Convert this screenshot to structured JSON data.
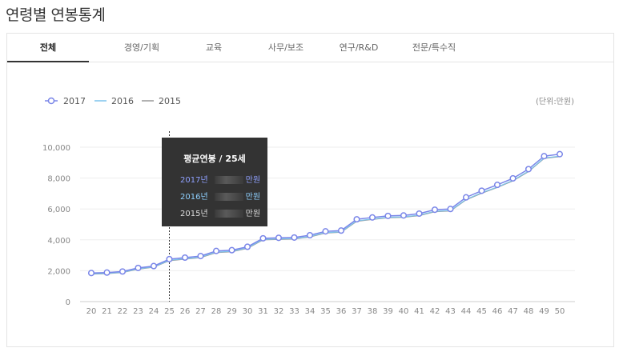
{
  "page": {
    "title": "연령별 연봉통계"
  },
  "tabs": [
    {
      "label": "전체",
      "active": true
    },
    {
      "label": "경영/기획",
      "active": false
    },
    {
      "label": "교육",
      "active": false
    },
    {
      "label": "사무/보조",
      "active": false
    },
    {
      "label": "연구/R&D",
      "active": false
    },
    {
      "label": "전문/특수직",
      "active": false
    }
  ],
  "legend": [
    {
      "name": "2017",
      "color": "#7a86e8"
    },
    {
      "name": "2016",
      "color": "#7cc3ec"
    },
    {
      "name": "2015",
      "color": "#999999"
    }
  ],
  "unit_label": "(단위:만원)",
  "tooltip": {
    "title": "평균연봉 / 25세",
    "rows": [
      {
        "year": "2017년",
        "unit": "만원",
        "color": "#8fa0ff"
      },
      {
        "year": "2016년",
        "unit": "만원",
        "color": "#8fd0ff"
      },
      {
        "year": "2015년",
        "unit": "만원",
        "color": "#dddddd"
      }
    ]
  },
  "chart_data": {
    "type": "line",
    "x": [
      20,
      21,
      22,
      23,
      24,
      25,
      26,
      27,
      28,
      29,
      30,
      31,
      32,
      33,
      34,
      35,
      36,
      37,
      38,
      39,
      40,
      41,
      42,
      43,
      44,
      45,
      46,
      47,
      48,
      49,
      50
    ],
    "series": [
      {
        "name": "2017",
        "values": [
          1850,
          1880,
          1950,
          2180,
          2300,
          2750,
          2850,
          2950,
          3280,
          3330,
          3550,
          4100,
          4130,
          4150,
          4300,
          4550,
          4600,
          5330,
          5450,
          5550,
          5580,
          5700,
          5950,
          6000,
          6750,
          7180,
          7560,
          7980,
          8580,
          9420,
          9550
        ]
      },
      {
        "name": "2016",
        "values": [
          1800,
          1830,
          1900,
          2120,
          2250,
          2680,
          2780,
          2880,
          3200,
          3260,
          3480,
          4030,
          4060,
          4080,
          4220,
          4470,
          4520,
          5230,
          5350,
          5460,
          5490,
          5600,
          5850,
          5900,
          6620,
          7050,
          7420,
          7850,
          8450,
          9300,
          9420
        ]
      },
      {
        "name": "2015",
        "values": [
          1780,
          1810,
          1880,
          2100,
          2230,
          2650,
          2750,
          2850,
          3170,
          3230,
          3450,
          4000,
          4030,
          4050,
          4190,
          4440,
          4490,
          5200,
          5320,
          5430,
          5460,
          5570,
          5820,
          5870,
          6590,
          7020,
          7390,
          7820,
          8420,
          9270,
          9390
        ]
      }
    ],
    "ylim": [
      0,
      10000
    ],
    "yticks": [
      "0",
      "2,000",
      "4,000",
      "6,000",
      "8,000",
      "10,000"
    ],
    "ytick_values": [
      0,
      2000,
      4000,
      6000,
      8000,
      10000
    ],
    "xticks": [
      "20",
      "21",
      "22",
      "23",
      "24",
      "25",
      "26",
      "27",
      "28",
      "29",
      "30",
      "31",
      "32",
      "33",
      "34",
      "35",
      "36",
      "37",
      "38",
      "39",
      "40",
      "41",
      "42",
      "43",
      "44",
      "45",
      "46",
      "47",
      "48",
      "49",
      "50"
    ],
    "highlight_x": 25,
    "grid": true,
    "legend_position": "top-left"
  }
}
